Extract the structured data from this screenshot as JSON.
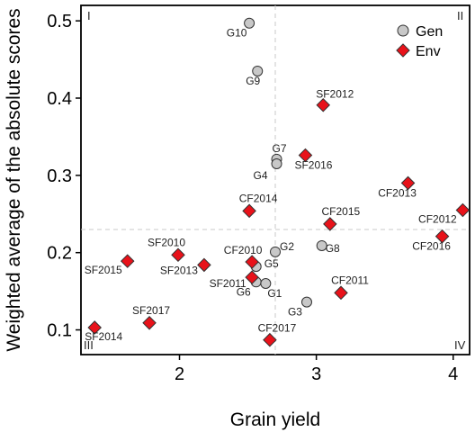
{
  "chart_data": {
    "type": "scatter",
    "xlabel": "Grain yield",
    "ylabel": "Weighted average of the absolute scores",
    "xlim": [
      1.28,
      4.12
    ],
    "ylim": [
      0.068,
      0.52
    ],
    "xticks": [
      2,
      3,
      4
    ],
    "yticks": [
      0.1,
      0.2,
      0.3,
      0.4,
      0.5
    ],
    "ref_lines": {
      "x": 2.7,
      "y": 0.23
    },
    "quadrants": [
      "I",
      "II",
      "III",
      "IV"
    ],
    "legend": {
      "position": "top-right",
      "entries": [
        "Gen",
        "Env"
      ]
    },
    "colors": {
      "Gen": "#c8c8c8",
      "Env": "#e8121a",
      "outline": "#333333",
      "refline": "#c8c8c8"
    },
    "series": [
      {
        "name": "Gen",
        "marker": "circle",
        "points": [
          {
            "label": "G10",
            "x": 2.51,
            "y": 0.497
          },
          {
            "label": "G9",
            "x": 2.57,
            "y": 0.435
          },
          {
            "label": "G7",
            "x": 2.71,
            "y": 0.321
          },
          {
            "label": "G4",
            "x": 2.71,
            "y": 0.315
          },
          {
            "label": "G2",
            "x": 2.7,
            "y": 0.201
          },
          {
            "label": "G8",
            "x": 3.04,
            "y": 0.209
          },
          {
            "label": "G5",
            "x": 2.56,
            "y": 0.182
          },
          {
            "label": "G6",
            "x": 2.56,
            "y": 0.162
          },
          {
            "label": "G1",
            "x": 2.63,
            "y": 0.16
          },
          {
            "label": "G3",
            "x": 2.93,
            "y": 0.136
          }
        ]
      },
      {
        "name": "Env",
        "marker": "diamond",
        "points": [
          {
            "label": "SF2012",
            "x": 3.05,
            "y": 0.391
          },
          {
            "label": "SF2016",
            "x": 2.92,
            "y": 0.326
          },
          {
            "label": "CF2013",
            "x": 3.67,
            "y": 0.29
          },
          {
            "label": "CF2014",
            "x": 2.51,
            "y": 0.254
          },
          {
            "label": "CF2012",
            "x": 4.07,
            "y": 0.255
          },
          {
            "label": "CF2015",
            "x": 3.1,
            "y": 0.237
          },
          {
            "label": "CF2016",
            "x": 3.92,
            "y": 0.221
          },
          {
            "label": "SF2010",
            "x": 1.99,
            "y": 0.197
          },
          {
            "label": "SF2015",
            "x": 1.62,
            "y": 0.189
          },
          {
            "label": "CF2010",
            "x": 2.53,
            "y": 0.188
          },
          {
            "label": "SF2013",
            "x": 2.18,
            "y": 0.184
          },
          {
            "label": "SF2011",
            "x": 2.53,
            "y": 0.168
          },
          {
            "label": "CF2011",
            "x": 3.18,
            "y": 0.148
          },
          {
            "label": "SF2017",
            "x": 1.78,
            "y": 0.109
          },
          {
            "label": "SF2014",
            "x": 1.38,
            "y": 0.103
          },
          {
            "label": "CF2017",
            "x": 2.66,
            "y": 0.087
          }
        ]
      }
    ]
  }
}
